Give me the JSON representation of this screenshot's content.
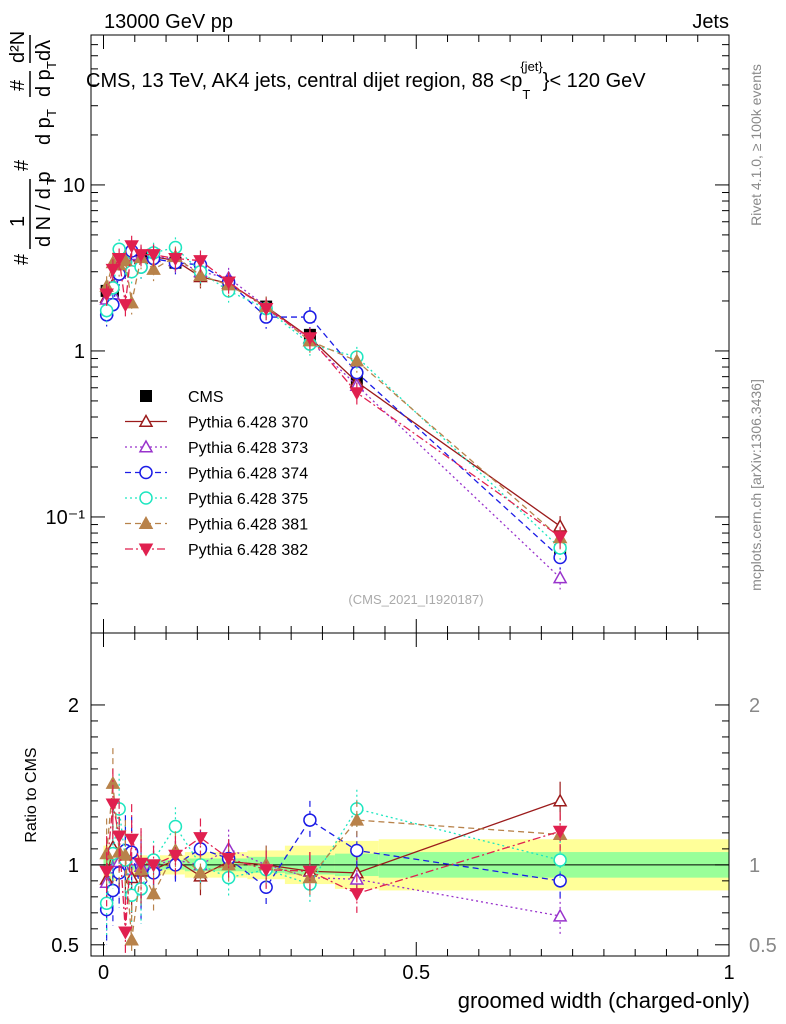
{
  "header": {
    "left": "13000 GeV pp",
    "right": "Jets"
  },
  "side_text": {
    "rivet": "Rivet 4.1.0, ≥ 100k events",
    "mcplots": "mcplots.cern.ch [arXiv:1306.3436]"
  },
  "ylabel_parts": {
    "hash": "#",
    "one": "1",
    "dN": "d N / d p",
    "T": "T",
    "d2N": "d²N",
    "dpT": "d p",
    "dlambda": "dλ"
  },
  "colors": {
    "cms": "#000000",
    "p370": "#9b1b1b",
    "p373": "#9933cc",
    "p374": "#1c1ce6",
    "p375": "#1ee6c0",
    "p381": "#b8824a",
    "p382": "#e0204f",
    "band_outer": "#ffff99",
    "band_inner": "#99ff99"
  },
  "chart_data": [
    {
      "type": "scatter",
      "panel": "main",
      "title": "CMS, 13 TeV, AK4 jets, central dijet region, 88 <p",
      "title_sup": "{jet}",
      "title_sub": "T",
      "title_end": "}< 120 GeV",
      "xlabel": "groomed width (charged-only)",
      "ylabel": "1/N dN/dpT d²N/dpT dλ",
      "yscale": "log",
      "xlim": [
        -0.02,
        1.0
      ],
      "ylim": [
        0.02,
        80
      ],
      "ytick_labels": [
        "10⁻¹",
        "1",
        "10"
      ],
      "ytick_values": [
        0.1,
        1,
        10
      ],
      "xtick_labels": [
        "0",
        "0.5",
        "1"
      ],
      "xtick_values": [
        0,
        0.5,
        1
      ],
      "watermark": "(CMS_2021_I1920187)",
      "legend_position": "center-left",
      "x": [
        0.005,
        0.015,
        0.025,
        0.035,
        0.045,
        0.06,
        0.08,
        0.115,
        0.155,
        0.2,
        0.26,
        0.33,
        0.405,
        0.73
      ],
      "series": [
        {
          "name": "CMS",
          "key": "cms",
          "marker": "square-filled",
          "dash": "none",
          "values": [
            2.3,
            2.25,
            3.05,
            3.3,
            3.7,
            3.75,
            3.8,
            3.4,
            3.0,
            2.5,
            1.85,
            1.25,
            0.68,
            0.063
          ]
        },
        {
          "name": "Pythia 6.428 370",
          "key": "p370",
          "marker": "triangle-up-open",
          "dash": "solid",
          "values": [
            2.1,
            2.5,
            3.3,
            3.2,
            3.4,
            3.6,
            3.7,
            3.5,
            2.8,
            2.55,
            1.85,
            1.2,
            0.65,
            0.088
          ]
        },
        {
          "name": "Pythia 6.428 373",
          "key": "p373",
          "marker": "triangle-up-open",
          "dash": "dotted",
          "values": [
            2.05,
            2.2,
            3.1,
            3.2,
            3.8,
            3.7,
            3.8,
            3.5,
            3.0,
            2.75,
            1.85,
            1.15,
            0.62,
            0.043
          ]
        },
        {
          "name": "Pythia 6.428 374",
          "key": "p374",
          "marker": "circle-open",
          "dash": "dashed",
          "values": [
            1.65,
            1.9,
            2.9,
            3.6,
            4.0,
            3.2,
            3.6,
            3.4,
            3.3,
            2.6,
            1.6,
            1.6,
            0.74,
            0.057
          ]
        },
        {
          "name": "Pythia 6.428 375",
          "key": "p375",
          "marker": "circle-open",
          "dash": "dotted",
          "values": [
            1.75,
            2.4,
            4.1,
            3.4,
            3.0,
            3.2,
            3.9,
            4.2,
            3.0,
            2.3,
            1.8,
            1.1,
            0.92,
            0.065
          ]
        },
        {
          "name": "Pythia 6.428 381",
          "key": "p381",
          "marker": "triangle-up-filled",
          "dash": "dashed",
          "values": [
            2.45,
            3.4,
            3.3,
            3.5,
            1.95,
            3.65,
            3.1,
            3.7,
            2.85,
            2.5,
            1.85,
            1.15,
            0.87,
            0.075
          ]
        },
        {
          "name": "Pythia 6.428 382",
          "key": "p382",
          "marker": "triangle-down-filled",
          "dash": "dashdot",
          "values": [
            2.2,
            3.1,
            3.6,
            1.9,
            4.3,
            3.8,
            3.8,
            3.6,
            3.5,
            2.6,
            1.8,
            1.2,
            0.56,
            0.076
          ]
        }
      ]
    },
    {
      "type": "scatter",
      "panel": "ratio",
      "ylabel": "Ratio to CMS",
      "xlabel": "groomed width (charged-only)",
      "ylim": [
        0.43,
        2.45
      ],
      "ytick_labels": [
        "0.5",
        "1",
        "2"
      ],
      "ytick_values": [
        0.5,
        1,
        2
      ],
      "xlim": [
        -0.02,
        1.0
      ],
      "band_edges": [
        0,
        0.01,
        0.02,
        0.03,
        0.04,
        0.05,
        0.07,
        0.09,
        0.13,
        0.17,
        0.23,
        0.29,
        0.37,
        0.44,
        1.0
      ],
      "band_outer": [
        0.12,
        0.1,
        0.08,
        0.08,
        0.07,
        0.06,
        0.05,
        0.06,
        0.08,
        0.08,
        0.09,
        0.12,
        0.15,
        0.16
      ],
      "band_inner": [
        0.05,
        0.04,
        0.03,
        0.03,
        0.03,
        0.03,
        0.02,
        0.03,
        0.04,
        0.04,
        0.05,
        0.06,
        0.07,
        0.08
      ],
      "series": [
        {
          "name": "Pythia 6.428 370",
          "key": "p370",
          "values": [
            0.91,
            1.11,
            1.08,
            0.97,
            0.92,
            0.96,
            0.97,
            1.03,
            0.93,
            1.02,
            1.0,
            0.96,
            0.95,
            1.4
          ]
        },
        {
          "name": "Pythia 6.428 373",
          "key": "p373",
          "values": [
            0.89,
            0.98,
            1.02,
            0.97,
            1.03,
            0.99,
            1.0,
            1.03,
            1.0,
            1.1,
            1.0,
            0.92,
            0.91,
            0.68
          ]
        },
        {
          "name": "Pythia 6.428 374",
          "key": "p374",
          "values": [
            0.72,
            0.84,
            0.95,
            1.09,
            1.08,
            0.85,
            0.95,
            1.0,
            1.1,
            1.04,
            0.86,
            1.28,
            1.09,
            0.9
          ]
        },
        {
          "name": "Pythia 6.428 375",
          "key": "p375",
          "values": [
            0.76,
            1.07,
            1.35,
            1.03,
            0.81,
            0.85,
            1.03,
            1.24,
            1.0,
            0.92,
            0.97,
            0.88,
            1.35,
            1.03
          ]
        },
        {
          "name": "Pythia 6.428 381",
          "key": "p381",
          "values": [
            1.07,
            1.51,
            1.08,
            1.06,
            0.53,
            0.97,
            0.82,
            1.09,
            0.95,
            1.0,
            1.0,
            0.92,
            1.28,
            1.19
          ]
        },
        {
          "name": "Pythia 6.428 382",
          "key": "p382",
          "values": [
            0.96,
            1.38,
            1.18,
            0.58,
            1.16,
            1.01,
            1.0,
            1.06,
            1.17,
            1.04,
            0.97,
            0.96,
            0.82,
            1.21
          ]
        }
      ]
    }
  ]
}
